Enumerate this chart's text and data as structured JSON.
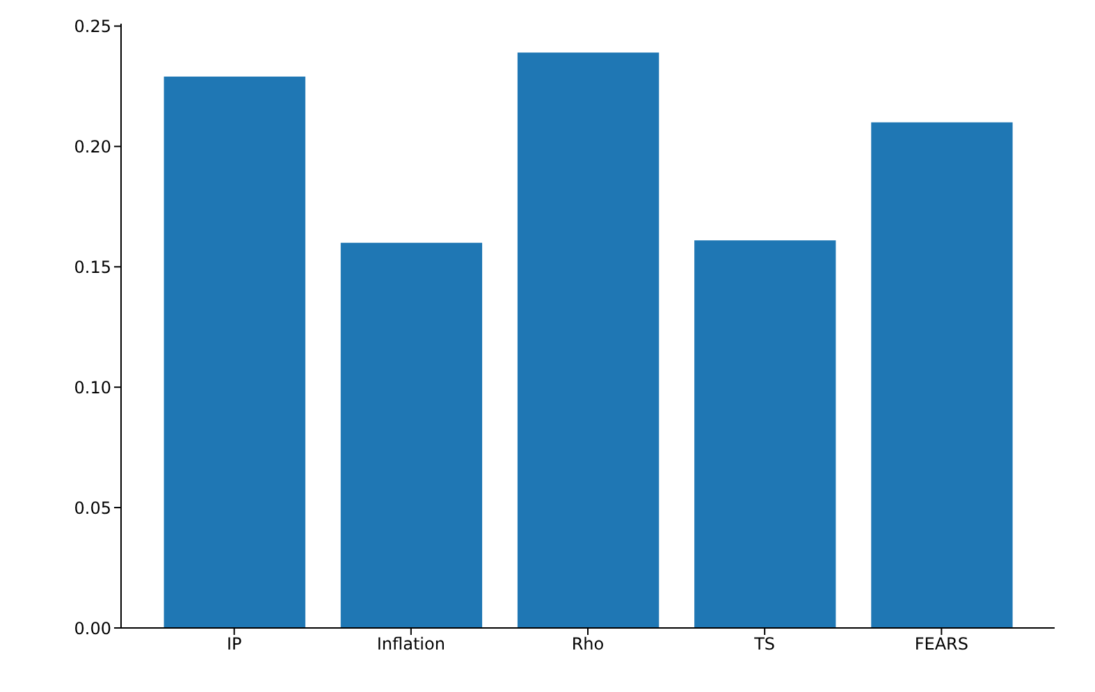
{
  "chart_data": {
    "type": "bar",
    "categories": [
      "IP",
      "Inflation",
      "Rho",
      "TS",
      "FEARS"
    ],
    "values": [
      0.229,
      0.16,
      0.239,
      0.161,
      0.21
    ],
    "color": "#1f77b4",
    "ylim": [
      0,
      0.251
    ],
    "yticks": [
      {
        "value": 0,
        "label": "0.00"
      },
      {
        "value": 0.05,
        "label": "0.05"
      },
      {
        "value": 0.1,
        "label": "0.10"
      },
      {
        "value": 0.15,
        "label": "0.15"
      },
      {
        "value": 0.2,
        "label": "0.20"
      },
      {
        "value": 0.25,
        "label": "0.25"
      }
    ],
    "grid": false
  }
}
